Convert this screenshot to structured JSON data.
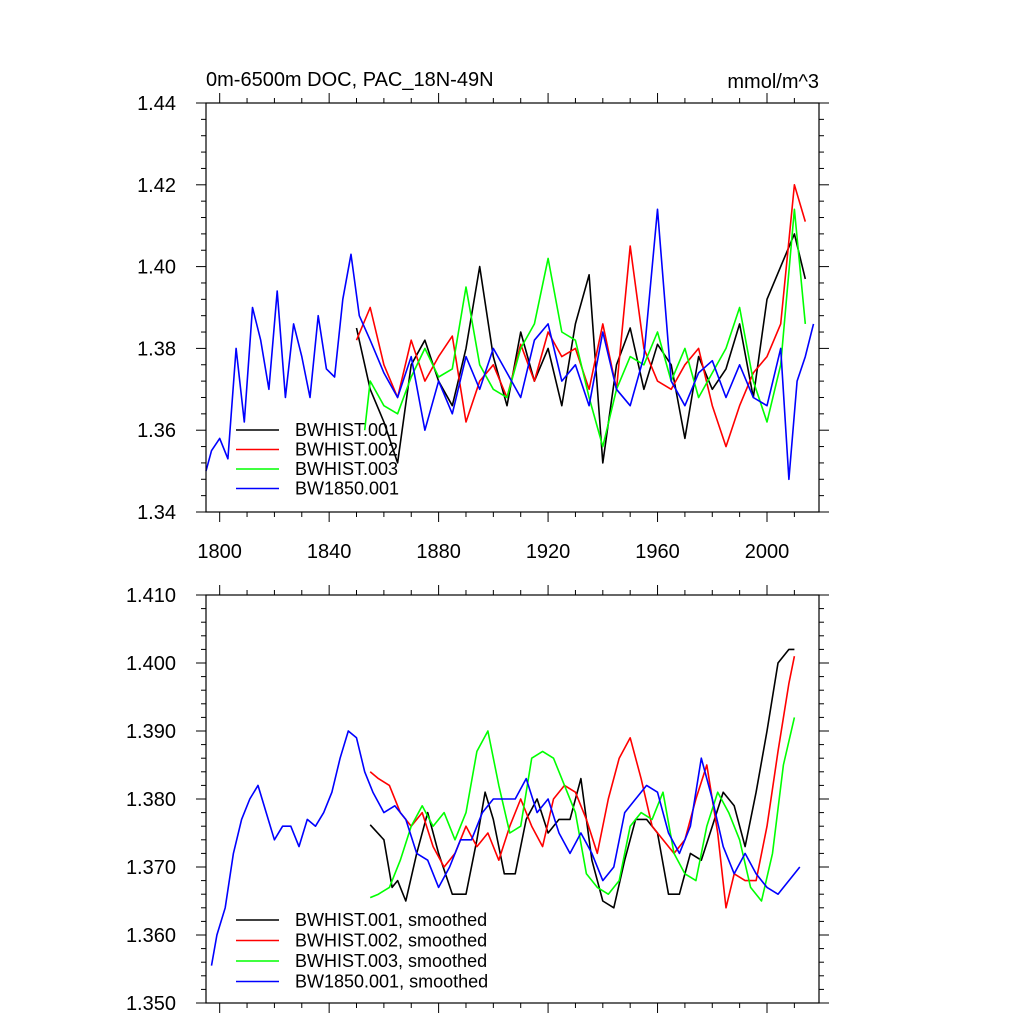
{
  "chart_data": [
    {
      "type": "line",
      "title": "0m-6500m DOC, PAC_18N-49N",
      "units": "mmol/m^3",
      "xlim": [
        1795,
        2019
      ],
      "ylim": [
        1.34,
        1.44
      ],
      "x_ticks": [
        1800,
        1840,
        1880,
        1920,
        1960,
        2000
      ],
      "y_ticks": [
        1.34,
        1.36,
        1.38,
        1.4,
        1.42,
        1.44
      ],
      "y_tick_labels": [
        "1.34",
        "1.36",
        "1.38",
        "1.40",
        "1.42",
        "1.44"
      ],
      "legend_location": "lower-left",
      "series": [
        {
          "name": "BWHIST.001",
          "color": "#000000",
          "x": [
            1850,
            1855,
            1860,
            1865,
            1870,
            1875,
            1880,
            1885,
            1890,
            1895,
            1900,
            1905,
            1910,
            1915,
            1920,
            1925,
            1930,
            1935,
            1940,
            1945,
            1950,
            1955,
            1960,
            1965,
            1970,
            1975,
            1980,
            1985,
            1990,
            1995,
            2000,
            2005,
            2010,
            2014
          ],
          "y": [
            1.385,
            1.37,
            1.362,
            1.352,
            1.376,
            1.382,
            1.372,
            1.366,
            1.38,
            1.4,
            1.378,
            1.366,
            1.384,
            1.372,
            1.38,
            1.366,
            1.386,
            1.398,
            1.352,
            1.376,
            1.385,
            1.37,
            1.381,
            1.376,
            1.358,
            1.378,
            1.37,
            1.375,
            1.386,
            1.368,
            1.392,
            1.4,
            1.408,
            1.397
          ]
        },
        {
          "name": "BWHIST.002",
          "color": "#ff0000",
          "x": [
            1850,
            1855,
            1860,
            1865,
            1870,
            1875,
            1880,
            1885,
            1890,
            1895,
            1900,
            1905,
            1910,
            1915,
            1920,
            1925,
            1930,
            1935,
            1940,
            1945,
            1950,
            1955,
            1960,
            1965,
            1970,
            1975,
            1980,
            1985,
            1990,
            1995,
            2000,
            2005,
            2010,
            2014
          ],
          "y": [
            1.382,
            1.39,
            1.376,
            1.368,
            1.382,
            1.372,
            1.378,
            1.383,
            1.362,
            1.372,
            1.376,
            1.368,
            1.381,
            1.372,
            1.384,
            1.378,
            1.38,
            1.37,
            1.386,
            1.37,
            1.405,
            1.38,
            1.372,
            1.37,
            1.376,
            1.38,
            1.366,
            1.356,
            1.366,
            1.374,
            1.378,
            1.386,
            1.42,
            1.411
          ]
        },
        {
          "name": "BWHIST.003",
          "color": "#00ff00",
          "x": [
            1853,
            1855,
            1860,
            1865,
            1870,
            1875,
            1880,
            1885,
            1890,
            1895,
            1900,
            1905,
            1910,
            1915,
            1920,
            1925,
            1930,
            1935,
            1940,
            1945,
            1950,
            1955,
            1960,
            1965,
            1970,
            1975,
            1980,
            1985,
            1990,
            1995,
            2000,
            2005,
            2010,
            2014
          ],
          "y": [
            1.36,
            1.372,
            1.366,
            1.364,
            1.373,
            1.38,
            1.373,
            1.375,
            1.395,
            1.376,
            1.37,
            1.368,
            1.38,
            1.386,
            1.402,
            1.384,
            1.382,
            1.368,
            1.356,
            1.37,
            1.378,
            1.376,
            1.384,
            1.372,
            1.38,
            1.368,
            1.374,
            1.38,
            1.39,
            1.372,
            1.362,
            1.376,
            1.414,
            1.386
          ]
        },
        {
          "name": "BW1850.001",
          "color": "#0000ff",
          "x": [
            1795,
            1797,
            1800,
            1803,
            1806,
            1809,
            1812,
            1815,
            1818,
            1821,
            1824,
            1827,
            1830,
            1833,
            1836,
            1839,
            1842,
            1845,
            1848,
            1851,
            1855,
            1860,
            1865,
            1870,
            1875,
            1880,
            1885,
            1890,
            1895,
            1900,
            1905,
            1910,
            1915,
            1920,
            1925,
            1930,
            1935,
            1940,
            1945,
            1950,
            1955,
            1960,
            1965,
            1970,
            1975,
            1980,
            1985,
            1990,
            1995,
            2000,
            2005,
            2008,
            2011,
            2014,
            2017
          ],
          "y": [
            1.35,
            1.355,
            1.358,
            1.353,
            1.38,
            1.362,
            1.39,
            1.382,
            1.37,
            1.394,
            1.368,
            1.386,
            1.378,
            1.368,
            1.388,
            1.375,
            1.373,
            1.392,
            1.403,
            1.388,
            1.382,
            1.374,
            1.368,
            1.378,
            1.36,
            1.372,
            1.364,
            1.378,
            1.37,
            1.38,
            1.374,
            1.368,
            1.382,
            1.386,
            1.372,
            1.376,
            1.366,
            1.384,
            1.37,
            1.366,
            1.378,
            1.414,
            1.372,
            1.366,
            1.374,
            1.377,
            1.368,
            1.376,
            1.368,
            1.366,
            1.38,
            1.348,
            1.372,
            1.378,
            1.386
          ]
        }
      ]
    },
    {
      "type": "line",
      "xlim": [
        1795,
        2019
      ],
      "ylim": [
        1.35,
        1.41
      ],
      "x_ticks": [
        1800,
        1840,
        1880,
        1920,
        1960,
        2000
      ],
      "y_ticks": [
        1.35,
        1.36,
        1.37,
        1.38,
        1.39,
        1.4,
        1.41
      ],
      "y_tick_labels": [
        "1.350",
        "1.360",
        "1.370",
        "1.380",
        "1.390",
        "1.400",
        "1.410"
      ],
      "legend_location": "lower-left",
      "series": [
        {
          "name": "BWHIST.001, smoothed",
          "color": "#000000",
          "x": [
            1855,
            1860,
            1863,
            1865,
            1868,
            1872,
            1876,
            1880,
            1885,
            1890,
            1894,
            1897,
            1900,
            1904,
            1908,
            1912,
            1916,
            1920,
            1924,
            1928,
            1932,
            1936,
            1940,
            1944,
            1948,
            1952,
            1956,
            1960,
            1964,
            1968,
            1972,
            1976,
            1980,
            1984,
            1988,
            1992,
            1996,
            2000,
            2004,
            2008,
            2010
          ],
          "y": [
            1.3762,
            1.374,
            1.367,
            1.368,
            1.365,
            1.372,
            1.378,
            1.372,
            1.366,
            1.366,
            1.374,
            1.381,
            1.377,
            1.369,
            1.369,
            1.377,
            1.38,
            1.375,
            1.377,
            1.377,
            1.383,
            1.371,
            1.365,
            1.364,
            1.371,
            1.377,
            1.377,
            1.375,
            1.366,
            1.366,
            1.372,
            1.371,
            1.376,
            1.381,
            1.379,
            1.373,
            1.381,
            1.39,
            1.4,
            1.402,
            1.402
          ]
        },
        {
          "name": "BWHIST.002, smoothed",
          "color": "#ff0000",
          "x": [
            1855,
            1858,
            1862,
            1866,
            1870,
            1874,
            1878,
            1882,
            1886,
            1890,
            1894,
            1898,
            1902,
            1906,
            1910,
            1914,
            1918,
            1922,
            1926,
            1930,
            1934,
            1938,
            1942,
            1946,
            1950,
            1954,
            1958,
            1962,
            1966,
            1970,
            1974,
            1978,
            1982,
            1985,
            1988,
            1992,
            1996,
            2000,
            2004,
            2008,
            2010
          ],
          "y": [
            1.384,
            1.383,
            1.382,
            1.378,
            1.376,
            1.378,
            1.373,
            1.37,
            1.372,
            1.376,
            1.373,
            1.375,
            1.371,
            1.376,
            1.38,
            1.376,
            1.373,
            1.38,
            1.382,
            1.381,
            1.377,
            1.372,
            1.38,
            1.386,
            1.389,
            1.383,
            1.376,
            1.374,
            1.372,
            1.374,
            1.38,
            1.385,
            1.375,
            1.364,
            1.369,
            1.368,
            1.368,
            1.376,
            1.387,
            1.397,
            1.401
          ]
        },
        {
          "name": "BWHIST.003, smoothed",
          "color": "#00ff00",
          "x": [
            1855,
            1858,
            1862,
            1866,
            1870,
            1874,
            1878,
            1882,
            1886,
            1890,
            1894,
            1898,
            1902,
            1906,
            1910,
            1914,
            1918,
            1922,
            1926,
            1930,
            1934,
            1938,
            1942,
            1946,
            1950,
            1954,
            1958,
            1962,
            1966,
            1970,
            1974,
            1978,
            1982,
            1986,
            1990,
            1994,
            1998,
            2002,
            2006,
            2010
          ],
          "y": [
            1.3655,
            1.366,
            1.367,
            1.371,
            1.376,
            1.379,
            1.376,
            1.378,
            1.374,
            1.378,
            1.387,
            1.39,
            1.382,
            1.375,
            1.376,
            1.386,
            1.387,
            1.386,
            1.382,
            1.378,
            1.369,
            1.367,
            1.366,
            1.368,
            1.376,
            1.378,
            1.377,
            1.381,
            1.372,
            1.369,
            1.368,
            1.376,
            1.381,
            1.378,
            1.374,
            1.367,
            1.365,
            1.372,
            1.385,
            1.392
          ]
        },
        {
          "name": "BW1850.001, smoothed",
          "color": "#0000ff",
          "x": [
            1797,
            1799,
            1802,
            1805,
            1808,
            1811,
            1814,
            1817,
            1820,
            1823,
            1826,
            1829,
            1832,
            1835,
            1838,
            1841,
            1844,
            1847,
            1850,
            1853,
            1856,
            1860,
            1864,
            1868,
            1872,
            1876,
            1880,
            1884,
            1888,
            1892,
            1896,
            1900,
            1904,
            1908,
            1912,
            1916,
            1920,
            1924,
            1928,
            1932,
            1936,
            1940,
            1944,
            1948,
            1952,
            1956,
            1960,
            1964,
            1968,
            1972,
            1976,
            1980,
            1984,
            1988,
            1992,
            1996,
            2000,
            2004,
            2008,
            2012
          ],
          "y": [
            1.3555,
            1.36,
            1.364,
            1.372,
            1.377,
            1.38,
            1.382,
            1.378,
            1.374,
            1.376,
            1.376,
            1.373,
            1.377,
            1.376,
            1.378,
            1.381,
            1.386,
            1.39,
            1.389,
            1.384,
            1.381,
            1.378,
            1.379,
            1.377,
            1.372,
            1.371,
            1.367,
            1.37,
            1.374,
            1.374,
            1.378,
            1.38,
            1.38,
            1.38,
            1.383,
            1.378,
            1.38,
            1.375,
            1.372,
            1.375,
            1.372,
            1.368,
            1.37,
            1.378,
            1.38,
            1.382,
            1.381,
            1.375,
            1.372,
            1.376,
            1.386,
            1.38,
            1.373,
            1.369,
            1.372,
            1.369,
            1.367,
            1.366,
            1.368,
            1.37
          ]
        }
      ]
    }
  ]
}
